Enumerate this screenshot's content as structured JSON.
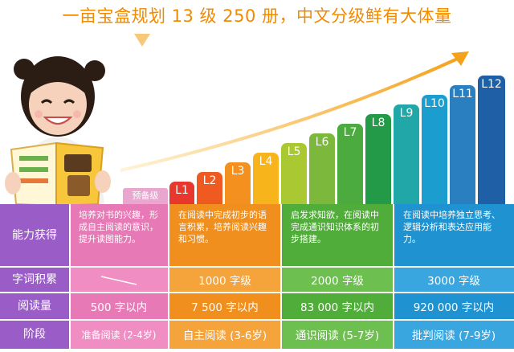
{
  "title": "一亩宝盒规划 13 级 250 册，中文分级鲜有大体量",
  "prep_badge": "预备级",
  "levels": [
    {
      "label": "L1",
      "color": "#e8382e"
    },
    {
      "label": "L2",
      "color": "#ee5a1f"
    },
    {
      "label": "L3",
      "color": "#f4901e"
    },
    {
      "label": "L4",
      "color": "#f7b51b"
    },
    {
      "label": "L5",
      "color": "#a9c832"
    },
    {
      "label": "L6",
      "color": "#7cb83b"
    },
    {
      "label": "L7",
      "color": "#4cab3e"
    },
    {
      "label": "L8",
      "color": "#239a48"
    },
    {
      "label": "L9",
      "color": "#22a7a8"
    },
    {
      "label": "L10",
      "color": "#1b9dcf"
    },
    {
      "label": "L11",
      "color": "#2a7fc1"
    },
    {
      "label": "L12",
      "color": "#1f5fa6"
    }
  ],
  "table": {
    "row_labels": [
      "能力获得",
      "字词积累",
      "阅读量",
      "阶段"
    ],
    "columns": [
      {
        "desc": "培养对书的兴趣，形成自主阅读的意识，提升读图能力。",
        "vocab": "",
        "reading": "500 字以内",
        "stage": "准备阅读 (2-4岁)",
        "color": "#e77ab6",
        "lightcolor": "#f08ec4"
      },
      {
        "desc": "在阅读中完成初步的语言积累，培养阅读兴趣和习惯。",
        "vocab": "1000 字级",
        "reading": "7 500 字以内",
        "stage": "自主阅读 (3-6岁)",
        "color": "#f08f1d",
        "lightcolor": "#f5a33b"
      },
      {
        "desc": "启发求知欲，在阅读中完成通识知识体系的初步搭建。",
        "vocab": "2000 字级",
        "reading": "83 000 字以内",
        "stage": "通识阅读 (5-7岁)",
        "color": "#51ad39",
        "lightcolor": "#6dbf4f"
      },
      {
        "desc": "在阅读中培养独立思考、逻辑分析和表达应用能力。",
        "vocab": "3000 字级",
        "reading": "920 000 字以内",
        "stage": "批判阅读 (7-9岁)",
        "color": "#1f93d2",
        "lightcolor": "#3aa6e0"
      }
    ]
  },
  "colors": {
    "title": "#f08a00",
    "row_label_bg": "#9a5cc7",
    "arrow": "#f5a21b"
  }
}
